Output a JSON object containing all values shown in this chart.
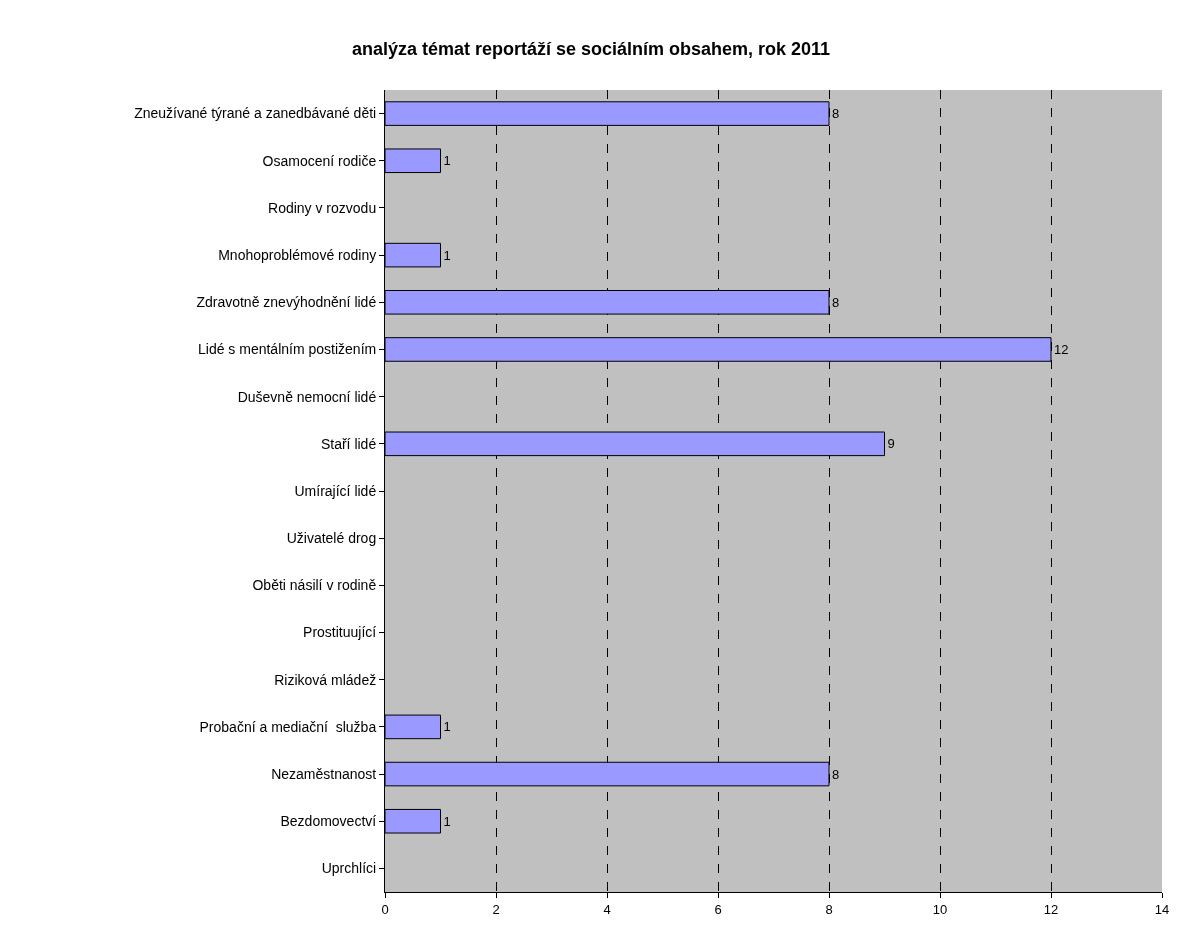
{
  "chart_data": {
    "type": "bar",
    "orientation": "horizontal",
    "title": "analýza témat reportáží se sociálním obsahem, rok 2011",
    "categories": [
      "Zneužívané týrané a zanedbávané děti",
      "Osamocení rodiče",
      "Rodiny v rozvodu",
      "Mnohoproblémové rodiny",
      "Zdravotně znevýhodnění lidé",
      "Lidé s mentálním postižením",
      "Duševně nemocní lidé",
      "Staří lidé",
      "Umírající lidé",
      "Uživatelé drog",
      "Oběti násilí v rodině",
      "Prostituující",
      "Riziková mládež",
      "Probační a mediační  služba",
      "Nezaměstnanost",
      "Bezdomovectví",
      "Uprchlíci"
    ],
    "values": [
      8,
      1,
      0,
      1,
      8,
      12,
      0,
      9,
      0,
      0,
      0,
      0,
      0,
      1,
      8,
      1,
      0
    ],
    "value_labels": [
      "8",
      "1",
      null,
      "1",
      "8",
      "12",
      null,
      "9",
      null,
      null,
      null,
      null,
      null,
      "1",
      "8",
      "1",
      null
    ],
    "color": "#9999ff",
    "xlim": [
      0,
      14
    ],
    "xticks": [
      0,
      2,
      4,
      6,
      8,
      10,
      12,
      14
    ],
    "grid": "x",
    "legend": false
  }
}
